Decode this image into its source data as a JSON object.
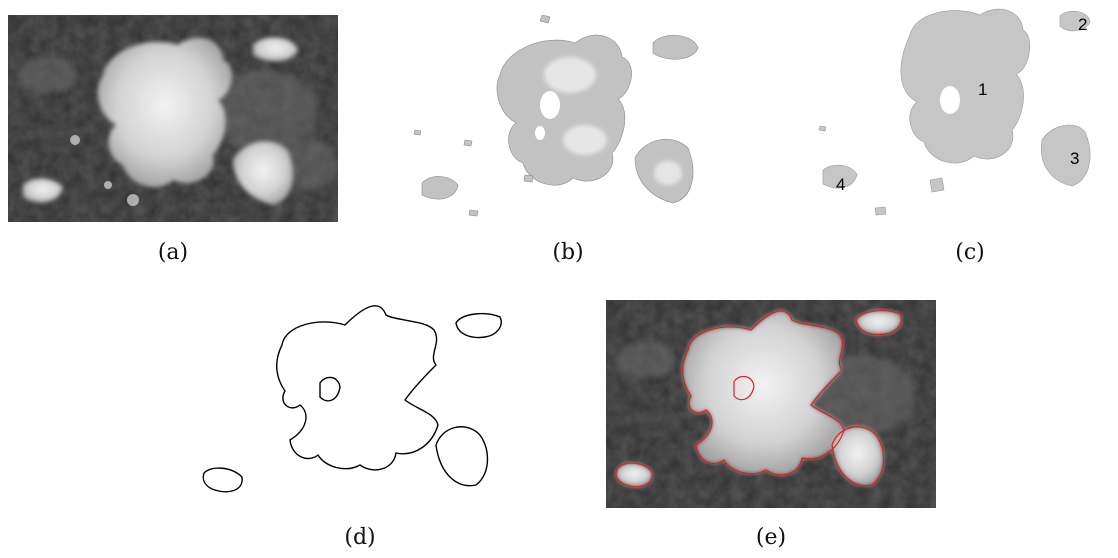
{
  "figure": {
    "panels": [
      {
        "caption": "(a)"
      },
      {
        "caption": "(b)"
      },
      {
        "caption": "(c)",
        "region_labels": [
          "1",
          "2",
          "3",
          "4"
        ]
      },
      {
        "caption": "(d)"
      },
      {
        "caption": "(e)"
      }
    ]
  },
  "colors": {
    "satellite_dark": "#2e2e2e",
    "cloud_white": "#e4e4e4",
    "segmented_gray": "#c4c4c4",
    "contour_black": "#000000",
    "contour_red": "#e02020"
  }
}
